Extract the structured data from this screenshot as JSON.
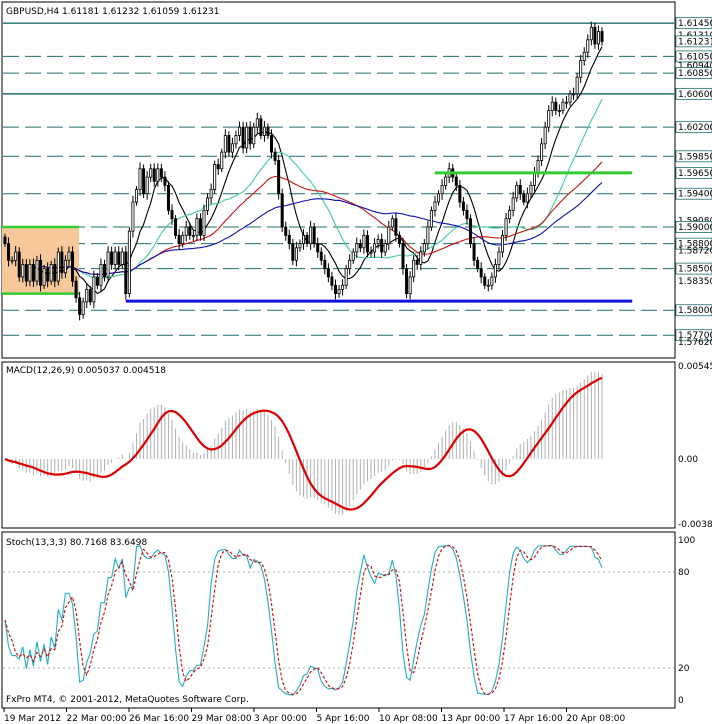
{
  "chart_data": [
    {
      "type": "candlestick",
      "panel": "main",
      "symbol_header": "GBPUSD,H4  1.61181 1.61232 1.61059 1.61231",
      "ylim": [
        1.5745,
        1.6168
      ],
      "price_labels": [
        "1.61450",
        "1.61310",
        "1.61231",
        "1.61050",
        "1.60940",
        "1.60850",
        "1.60600",
        "1.60200",
        "1.59850",
        "1.59650",
        "1.59400",
        "1.59080",
        "1.59000",
        "1.58800",
        "1.58720",
        "1.58500",
        "1.58350",
        "1.58000",
        "1.57700",
        "1.57620"
      ],
      "horizontal_levels": [
        {
          "price": 1.6145,
          "style": "solid",
          "color": "#1f6f6a"
        },
        {
          "price": 1.6105,
          "style": "dashed",
          "color": "#1f6f6a"
        },
        {
          "price": 1.6085,
          "style": "dashed",
          "color": "#1f6f6a"
        },
        {
          "price": 1.606,
          "style": "solid",
          "color": "#1f6f6a"
        },
        {
          "price": 1.602,
          "style": "dashed",
          "color": "#1f6f6a"
        },
        {
          "price": 1.5985,
          "style": "dashed",
          "color": "#1f6f6a"
        },
        {
          "price": 1.594,
          "style": "dashed",
          "color": "#1f6f6a"
        },
        {
          "price": 1.59,
          "style": "dashed",
          "color": "#1f6f6a"
        },
        {
          "price": 1.588,
          "style": "dashed",
          "color": "#1f6f6a"
        },
        {
          "price": 1.585,
          "style": "dashed",
          "color": "#1f6f6a"
        },
        {
          "price": 1.58,
          "style": "dashed",
          "color": "#1f6f6a"
        },
        {
          "price": 1.577,
          "style": "dashed",
          "color": "#1f6f6a"
        }
      ],
      "support_line": {
        "price": 1.5811,
        "bar_from": 34,
        "bar_to": 172,
        "color": "#1010e0"
      },
      "green_level": {
        "price": 1.5965,
        "bar_from": 121,
        "bar_to": 172,
        "color": "#33cc33"
      },
      "rectangle": {
        "price_top": 1.59,
        "price_bottom": 1.582,
        "bar_from": 0,
        "bar_to": 20,
        "fill": "#f7c99a",
        "border": "#33cc33"
      },
      "closes": [
        1.588,
        1.586,
        1.586,
        1.587,
        1.584,
        1.5855,
        1.5835,
        1.5855,
        1.5835,
        1.586,
        1.583,
        1.585,
        1.5835,
        1.5855,
        1.5835,
        1.587,
        1.5845,
        1.586,
        1.587,
        1.5835,
        1.5815,
        1.5795,
        1.581,
        1.5825,
        1.581,
        1.584,
        1.583,
        1.5855,
        1.584,
        1.587,
        1.5855,
        1.587,
        1.5855,
        1.587,
        1.582,
        1.5895,
        1.593,
        1.5945,
        1.597,
        1.594,
        1.596,
        1.597,
        1.5955,
        1.597,
        1.596,
        1.595,
        1.592,
        1.591,
        1.589,
        1.588,
        1.589,
        1.59,
        1.589,
        1.589,
        1.591,
        1.589,
        1.592,
        1.5935,
        1.5945,
        1.5975,
        1.597,
        1.599,
        1.601,
        1.599,
        1.6,
        1.601,
        1.602,
        1.5995,
        1.602,
        1.6,
        1.602,
        1.603,
        1.601,
        1.602,
        1.601,
        1.599,
        1.598,
        1.594,
        1.59,
        1.589,
        1.588,
        1.586,
        1.5875,
        1.588,
        1.589,
        1.588,
        1.59,
        1.588,
        1.587,
        1.586,
        1.585,
        1.584,
        1.583,
        1.582,
        1.5825,
        1.583,
        1.585,
        1.586,
        1.587,
        1.588,
        1.5875,
        1.589,
        1.587,
        1.587,
        1.588,
        1.5885,
        1.587,
        1.588,
        1.59,
        1.591,
        1.589,
        1.588,
        1.585,
        1.582,
        1.584,
        1.586,
        1.5855,
        1.587,
        1.588,
        1.59,
        1.592,
        1.593,
        1.594,
        1.595,
        1.596,
        1.597,
        1.596,
        1.595,
        1.593,
        1.592,
        1.591,
        1.588,
        1.586,
        1.585,
        1.584,
        1.583,
        1.583,
        1.584,
        1.5855,
        1.587,
        1.589,
        1.591,
        1.592,
        1.5935,
        1.595,
        1.594,
        1.593,
        1.594,
        1.595,
        1.5965,
        1.598,
        1.6,
        1.602,
        1.604,
        1.605,
        1.604,
        1.604,
        1.605,
        1.605,
        1.606,
        1.606,
        1.608,
        1.61,
        1.611,
        1.6125,
        1.614,
        1.612,
        1.6135,
        1.6123
      ],
      "x_tick_labels": [
        "19 Mar 2012",
        "22 Mar 00:00",
        "26 Mar 16:00",
        "29 Mar 08:00",
        "3 Apr 00:00",
        "5 Apr 16:00",
        "10 Apr 08:00",
        "13 Apr 00:00",
        "17 Apr 16:00",
        "20 Apr 08:00"
      ],
      "moving_averages": [
        {
          "period": 8,
          "color": "#000000"
        },
        {
          "period": 22,
          "color": "#40d0a0"
        },
        {
          "period": 40,
          "color": "#cc1111"
        },
        {
          "period": 60,
          "color": "#1010b0"
        }
      ]
    },
    {
      "type": "macd",
      "panel": "macd",
      "header": "MACD(12,26,9) 0.005037 0.004518",
      "y_labels": [
        "0.00545",
        "0.00",
        "-0.00381"
      ],
      "ylim": [
        -0.00381,
        0.00545
      ],
      "signal_color": "#dd0000",
      "histogram_color": "#b0b0b0"
    },
    {
      "type": "stochastic",
      "panel": "stoch",
      "header": "Stoch(13,3,3) 80.7168 83.6498",
      "y_labels": [
        "100",
        "80",
        "20",
        "0"
      ],
      "ylim": [
        0,
        100
      ],
      "main_color": "#20b0c0",
      "signal_color": "#dd0000"
    }
  ],
  "footer": "FxPro MT4, © 2001-2012, MetaQuotes Software Corp."
}
